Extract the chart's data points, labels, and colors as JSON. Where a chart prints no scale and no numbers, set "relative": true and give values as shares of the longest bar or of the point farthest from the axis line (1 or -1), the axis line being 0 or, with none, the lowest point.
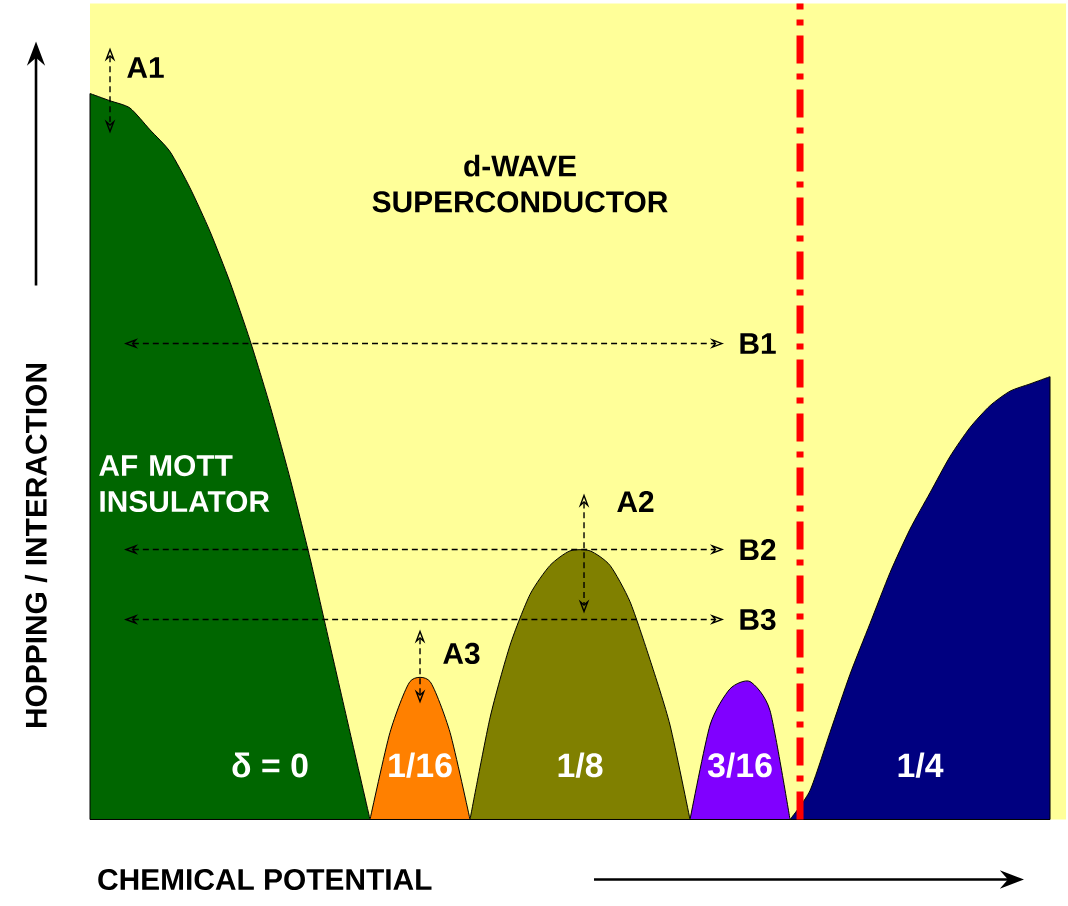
{
  "chart_data": {
    "type": "area",
    "relative": true,
    "xlabel": "CHEMICAL POTENTIAL",
    "ylabel": "HOPPING / INTERACTION",
    "categories": [
      null,
      null,
      null,
      null,
      null,
      null,
      null,
      null,
      null,
      null,
      null,
      null,
      null,
      null,
      null,
      null,
      null,
      null,
      null,
      null,
      null,
      null,
      null,
      null,
      null,
      null,
      null,
      null,
      null,
      null,
      null,
      null,
      null,
      null,
      null,
      null,
      null,
      null,
      null,
      null,
      null,
      null,
      null,
      null,
      null,
      null,
      null,
      null,
      null
    ],
    "series": [
      {
        "name": "δ = 0",
        "color": "#006600",
        "values": [
          1.0,
          0.99,
          0.98,
          0.95,
          0.92,
          0.87,
          0.81,
          0.74,
          0.66,
          0.57,
          0.47,
          0.36,
          0.24,
          0.12,
          0,
          null,
          null,
          null,
          null,
          null,
          null,
          null,
          null,
          null,
          null,
          null,
          null,
          null,
          null,
          null,
          null,
          null,
          null,
          null,
          null,
          null,
          null,
          null,
          null,
          null,
          null,
          null,
          null,
          null,
          null,
          null,
          null,
          null,
          null
        ]
      },
      {
        "name": "1/16",
        "color": "#ff8000",
        "values": [
          null,
          null,
          null,
          null,
          null,
          null,
          null,
          null,
          null,
          null,
          null,
          null,
          null,
          null,
          0,
          0.12,
          0.19,
          0.19,
          0.12,
          0,
          null,
          null,
          null,
          null,
          null,
          null,
          null,
          null,
          null,
          null,
          null,
          null,
          null,
          null,
          null,
          null,
          null,
          null,
          null,
          null,
          null,
          null,
          null,
          null,
          null,
          null,
          null,
          null,
          null
        ]
      },
      {
        "name": "1/8",
        "color": "#808000",
        "values": [
          null,
          null,
          null,
          null,
          null,
          null,
          null,
          null,
          null,
          null,
          null,
          null,
          null,
          null,
          null,
          null,
          null,
          null,
          null,
          0,
          0.14,
          0.24,
          0.31,
          0.35,
          0.37,
          0.37,
          0.35,
          0.3,
          0.22,
          0.13,
          0,
          null,
          null,
          null,
          null,
          null,
          null,
          null,
          null,
          null,
          null,
          null,
          null,
          null,
          null,
          null,
          null,
          null,
          null
        ]
      },
      {
        "name": "3/16",
        "color": "#8000ff",
        "values": [
          null,
          null,
          null,
          null,
          null,
          null,
          null,
          null,
          null,
          null,
          null,
          null,
          null,
          null,
          null,
          null,
          null,
          null,
          null,
          null,
          null,
          null,
          null,
          null,
          null,
          null,
          null,
          null,
          null,
          null,
          0,
          0.13,
          0.18,
          0.19,
          0.15,
          0,
          null,
          null,
          null,
          null,
          null,
          null,
          null,
          null,
          null,
          null,
          null,
          null,
          null
        ]
      },
      {
        "name": "1/4",
        "color": "#000080",
        "values": [
          null,
          null,
          null,
          null,
          null,
          null,
          null,
          null,
          null,
          null,
          null,
          null,
          null,
          null,
          null,
          null,
          null,
          null,
          null,
          null,
          null,
          null,
          null,
          null,
          null,
          null,
          null,
          null,
          null,
          null,
          null,
          null,
          null,
          null,
          null,
          0,
          0.04,
          0.12,
          0.2,
          0.27,
          0.34,
          0.4,
          0.45,
          0.5,
          0.54,
          0.57,
          0.59,
          0.6,
          0.61
        ]
      }
    ],
    "annotations": [
      "d-WAVE SUPERCONDUCTOR",
      "AF MOTT INSULATOR",
      "A1",
      "A2",
      "A3",
      "B1",
      "B2",
      "B3"
    ]
  }
}
